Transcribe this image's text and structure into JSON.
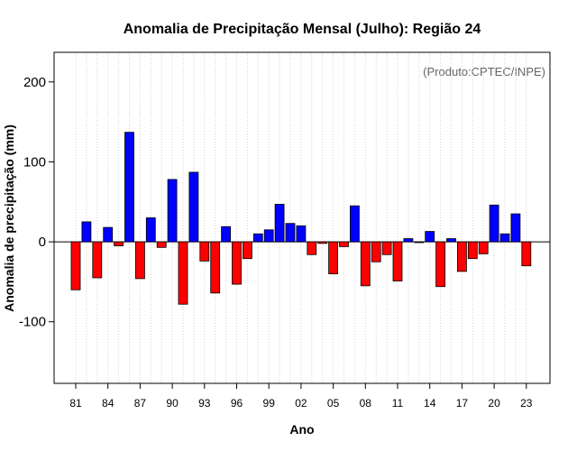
{
  "chart_data": {
    "type": "bar",
    "title": "Anomalia de Precipitação Mensal (Julho): Região 24",
    "xlabel": "Ano",
    "ylabel": "Anomalia de precipitação (mm)",
    "annotation": "(Produto:CPTEC/INPE)",
    "ylim": [
      -177,
      237
    ],
    "yticks": [
      -100,
      0,
      100,
      200
    ],
    "ytick_labels": [
      "-100",
      "0",
      "100",
      "200"
    ],
    "xtick_labels": [
      "81",
      "84",
      "87",
      "90",
      "93",
      "96",
      "99",
      "02",
      "05",
      "08",
      "11",
      "14",
      "17",
      "20",
      "23"
    ],
    "xtick_every": 3,
    "grid": "vertical dotted",
    "positive_color": "#0000ff",
    "negative_color": "#ff0000",
    "categories": [
      "1981",
      "1982",
      "1983",
      "1984",
      "1985",
      "1986",
      "1987",
      "1988",
      "1989",
      "1990",
      "1991",
      "1992",
      "1993",
      "1994",
      "1995",
      "1996",
      "1997",
      "1998",
      "1999",
      "2000",
      "2001",
      "2002",
      "2003",
      "2004",
      "2005",
      "2006",
      "2007",
      "2008",
      "2009",
      "2010",
      "2011",
      "2012",
      "2013",
      "2014",
      "2015",
      "2016",
      "2017",
      "2018",
      "2019",
      "2020",
      "2021",
      "2022",
      "2023"
    ],
    "values": [
      -60,
      25,
      -45,
      18,
      -5,
      137,
      -46,
      30,
      -7,
      78,
      -78,
      87,
      -24,
      -64,
      19,
      -53,
      -21,
      10,
      15,
      47,
      23,
      20,
      -16,
      -2,
      -40,
      -6,
      45,
      -55,
      -25,
      -16,
      -49,
      4,
      -1,
      13,
      -56,
      4,
      -37,
      -21,
      -15,
      46,
      10,
      35,
      -30
    ]
  }
}
